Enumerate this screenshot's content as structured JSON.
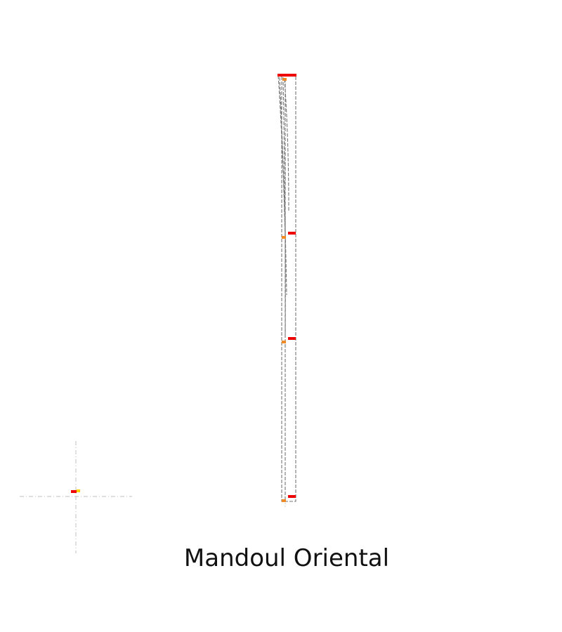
{
  "map": {
    "title": "Mandoul Oriental",
    "colors": {
      "background": "#ffffff",
      "outline": "#777777",
      "crosshair": "#cccccc",
      "marker_primary": "#ee0000",
      "marker_secondary": "#f08a24",
      "marker_highlight": "#ffd200"
    },
    "icons": [
      "region-outline",
      "location-marker",
      "inset-crosshair"
    ]
  }
}
